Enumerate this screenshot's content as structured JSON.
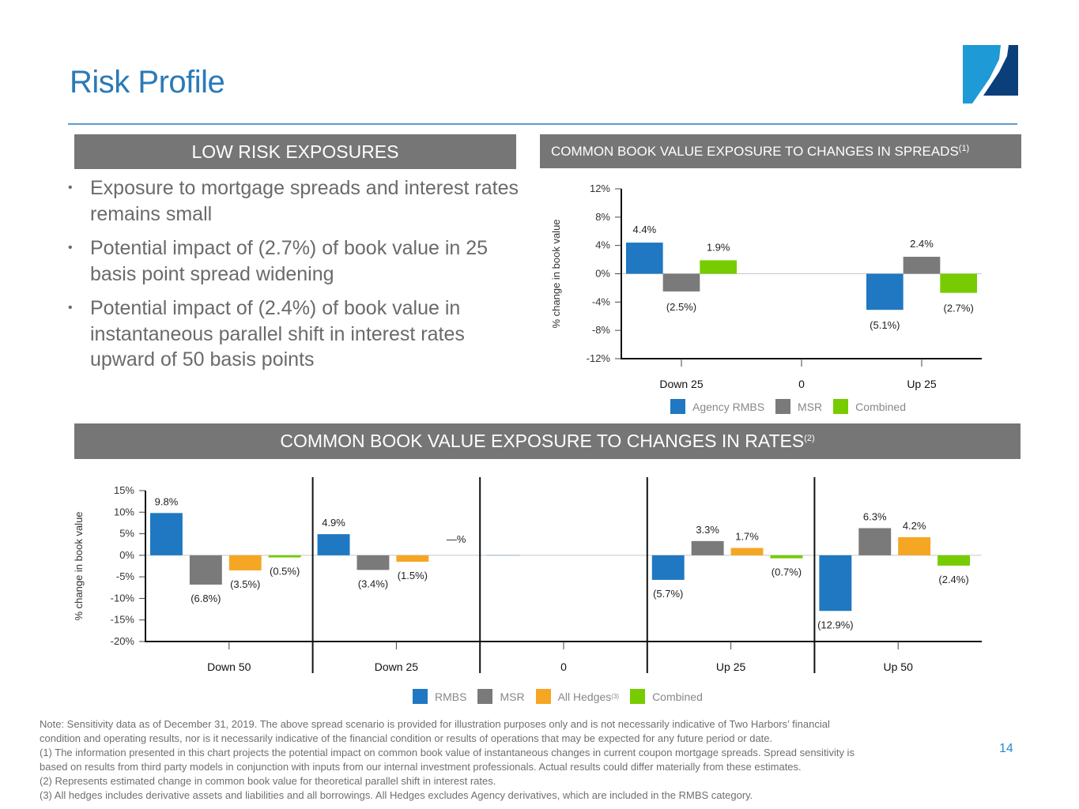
{
  "page": {
    "title": "Risk Profile",
    "page_number": "14",
    "logo": "two-harbors-logo"
  },
  "left_panel": {
    "header": "LOW RISK EXPOSURES",
    "bullets": [
      "Exposure to mortgage spreads and interest rates remains small",
      "Potential impact of (2.7%) of book value in 25 basis point spread widening",
      "Potential impact of (2.4%) of book value in instantaneous parallel shift in interest rates upward of 50 basis points"
    ]
  },
  "spreads_panel": {
    "header": "COMMON BOOK VALUE EXPOSURE TO CHANGES IN SPREADS",
    "header_sup": "(1)"
  },
  "rates_panel": {
    "header": "COMMON BOOK VALUE EXPOSURE TO CHANGES IN RATES",
    "header_sup": "(2)"
  },
  "colors": {
    "blue": "#1f78c1",
    "gray": "#7a7a7a",
    "orange": "#f5a623",
    "green": "#76cc00",
    "title_blue": "#2a7ab8"
  },
  "chart_data": [
    {
      "type": "bar",
      "title": "COMMON BOOK VALUE EXPOSURE TO CHANGES IN SPREADS(1)",
      "xlabel": "",
      "ylabel": "% change in book value",
      "categories": [
        "Down 25",
        "0",
        "Up 25"
      ],
      "ylim": [
        -12,
        12
      ],
      "yticks": [
        12,
        8,
        4,
        0,
        -4,
        -8,
        -12
      ],
      "ytick_labels": [
        "12%",
        "8%",
        "4%",
        "0%",
        "-4%",
        "-8%",
        "-12%"
      ],
      "legend_position": "bottom",
      "series": [
        {
          "name": "Agency RMBS",
          "color": "#1f78c1",
          "values": [
            4.4,
            null,
            -5.1
          ],
          "labels": [
            "4.4%",
            "",
            "(5.1%)"
          ]
        },
        {
          "name": "MSR",
          "color": "#7a7a7a",
          "values": [
            -2.5,
            null,
            2.4
          ],
          "labels": [
            "(2.5%)",
            "",
            "2.4%"
          ]
        },
        {
          "name": "Combined",
          "color": "#76cc00",
          "values": [
            1.9,
            null,
            -2.7
          ],
          "labels": [
            "1.9%",
            "",
            "(2.7%)"
          ]
        }
      ]
    },
    {
      "type": "bar",
      "title": "COMMON BOOK VALUE EXPOSURE TO CHANGES IN RATES(2)",
      "xlabel": "",
      "ylabel": "% change in book value",
      "categories": [
        "Down 50",
        "Down 25",
        "0",
        "Up 25",
        "Up 50"
      ],
      "ylim": [
        -20,
        15
      ],
      "yticks": [
        15,
        10,
        5,
        0,
        -5,
        -10,
        -15,
        -20
      ],
      "ytick_labels": [
        "15%",
        "10%",
        "5%",
        "0%",
        "-5%",
        "-10%",
        "-15%",
        "-20%"
      ],
      "legend_position": "bottom",
      "zero_scenario_label": "—%",
      "series": [
        {
          "name": "RMBS",
          "color": "#1f78c1",
          "values": [
            9.8,
            4.9,
            0,
            -5.7,
            -12.9
          ],
          "labels": [
            "9.8%",
            "4.9%",
            "",
            "(5.7%)",
            "(12.9%)"
          ]
        },
        {
          "name": "MSR",
          "color": "#7a7a7a",
          "values": [
            -6.8,
            -3.4,
            0,
            3.3,
            6.3
          ],
          "labels": [
            "(6.8%)",
            "(3.4%)",
            "",
            "3.3%",
            "6.3%"
          ]
        },
        {
          "name": "All Hedges",
          "name_sup": "(3)",
          "color": "#f5a623",
          "values": [
            -3.5,
            -1.5,
            0,
            1.7,
            4.2
          ],
          "labels": [
            "(3.5%)",
            "(1.5%)",
            "",
            "1.7%",
            "4.2%"
          ]
        },
        {
          "name": "Combined",
          "color": "#76cc00",
          "values": [
            -0.5,
            0,
            0,
            -0.7,
            -2.4
          ],
          "labels": [
            "(0.5%)",
            "",
            "",
            "(0.7%)",
            "(2.4%)"
          ]
        }
      ]
    }
  ],
  "notes": [
    "Note: Sensitivity data as of December 31, 2019.  The above spread scenario is provided for illustration purposes only and is not necessarily indicative of Two Harbors’ financial",
    "condition and operating results, nor is it necessarily indicative of the financial condition or results of operations that may be expected for any future period or date.",
    "(1) The information presented in this chart projects the potential impact on common book value of instantaneous changes in current coupon mortgage spreads. Spread sensitivity is",
    "based on results from third party models in conjunction with inputs from our internal investment professionals. Actual results could differ materially from these estimates.",
    "(2) Represents estimated change in common book value for theoretical parallel shift in interest rates.",
    "(3) All hedges includes derivative assets and liabilities and all borrowings.  All Hedges excludes Agency derivatives, which are included in the RMBS category."
  ]
}
